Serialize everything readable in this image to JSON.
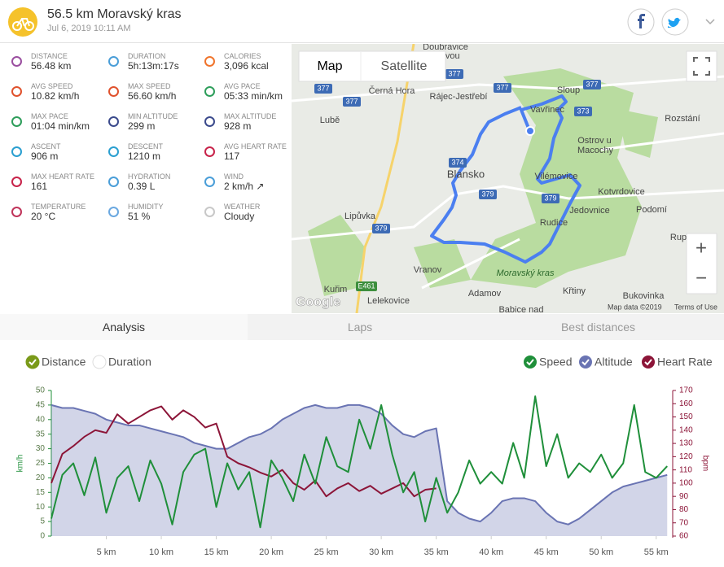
{
  "header": {
    "title": "56.5 km Moravský kras",
    "date": "Jul 6, 2019 10:11 AM"
  },
  "stats": [
    {
      "label": "DISTANCE",
      "value": "56.48 km"
    },
    {
      "label": "DURATION",
      "value": "5h:13m:17s"
    },
    {
      "label": "CALORIES",
      "value": "3,096 kcal"
    },
    {
      "label": "AVG SPEED",
      "value": "10.82 km/h"
    },
    {
      "label": "MAX SPEED",
      "value": "56.60 km/h"
    },
    {
      "label": "AVG PACE",
      "value": "05:33 min/km"
    },
    {
      "label": "MAX PACE",
      "value": "01:04 min/km"
    },
    {
      "label": "MIN ALTITUDE",
      "value": "299 m"
    },
    {
      "label": "MAX ALTITUDE",
      "value": "928 m"
    },
    {
      "label": "ASCENT",
      "value": "906 m"
    },
    {
      "label": "DESCENT",
      "value": "1210 m"
    },
    {
      "label": "AVG HEART RATE",
      "value": "117"
    },
    {
      "label": "MAX HEART RATE",
      "value": "161"
    },
    {
      "label": "HYDRATION",
      "value": "0.39 L"
    },
    {
      "label": "WIND",
      "value": "2 km/h ↗"
    },
    {
      "label": "TEMPERATURE",
      "value": "20 °C"
    },
    {
      "label": "HUMIDITY",
      "value": "51 %"
    },
    {
      "label": "WEATHER",
      "value": "Cloudy"
    }
  ],
  "map": {
    "buttons": [
      "Map",
      "Satellite"
    ],
    "places": [
      "Doubravice",
      "itavou",
      "Černá Hora",
      "Rájec-Jestřebí",
      "Sloup",
      "Lubě",
      "Vavřinec",
      "Rozstání",
      "Ostrov u",
      "Macochy",
      "Blansko",
      "Vilémovice",
      "Kotvrdovice",
      "Jedovnice",
      "Podomí",
      "Rudice",
      "Rup",
      "Lipůvka",
      "Vranov",
      "Moravský kras",
      "Křtiny",
      "Adamov",
      "Bukovinka",
      "Kuřim",
      "Lelekovice",
      "Babice nad"
    ],
    "roads": [
      "377",
      "377",
      "377",
      "377",
      "377",
      "373",
      "374",
      "379",
      "379",
      "379",
      "E461"
    ],
    "zoom": [
      "+",
      "−"
    ],
    "logo": "Google",
    "attribution": "Map data ©2019",
    "terms": "Terms of Use"
  },
  "tabs": [
    "Analysis",
    "Laps",
    "Best distances"
  ],
  "chart_data": {
    "type": "line",
    "x_modes": [
      "Distance",
      "Duration"
    ],
    "x": [
      0,
      1,
      2,
      3,
      4,
      5,
      6,
      7,
      8,
      9,
      10,
      11,
      12,
      13,
      14,
      15,
      16,
      17,
      18,
      19,
      20,
      21,
      22,
      23,
      24,
      25,
      26,
      27,
      28,
      29,
      30,
      31,
      32,
      33,
      34,
      35,
      36,
      37,
      38,
      39,
      40,
      41,
      42,
      43,
      44,
      45,
      46,
      47,
      48,
      49,
      50,
      51,
      52,
      53,
      54,
      55,
      56
    ],
    "xlim": [
      0,
      56.5
    ],
    "xticks": [
      {
        "value": 5,
        "label": "5 km"
      },
      {
        "value": 10,
        "label": "10 km"
      },
      {
        "value": 15,
        "label": "15 km"
      },
      {
        "value": 20,
        "label": "20 km"
      },
      {
        "value": 25,
        "label": "25 km"
      },
      {
        "value": 30,
        "label": "30 km"
      },
      {
        "value": 35,
        "label": "35 km"
      },
      {
        "value": 40,
        "label": "40 km"
      },
      {
        "value": 45,
        "label": "45 km"
      },
      {
        "value": 50,
        "label": "50 km"
      },
      {
        "value": 55,
        "label": "55 km"
      }
    ],
    "ylim": [
      0,
      50
    ],
    "yticks": [
      0,
      5,
      10,
      15,
      20,
      25,
      30,
      35,
      40,
      45,
      50
    ],
    "ylabel": "km/h",
    "y2lim": [
      60,
      170
    ],
    "y2ticks": [
      60,
      70,
      80,
      90,
      100,
      110,
      120,
      130,
      140,
      150,
      160,
      170
    ],
    "y2label": "bpm",
    "grid": false,
    "series": [
      {
        "name": "Speed",
        "color": "#1f8f3a",
        "axis": "y",
        "values": [
          6,
          21,
          25,
          14,
          27,
          8,
          20,
          24,
          12,
          26,
          18,
          4,
          22,
          28,
          30,
          10,
          25,
          16,
          22,
          3,
          26,
          20,
          12,
          28,
          18,
          34,
          24,
          22,
          40,
          30,
          45,
          28,
          15,
          22,
          5,
          20,
          8,
          15,
          26,
          18,
          22,
          18,
          32,
          20,
          48,
          24,
          35,
          20,
          25,
          22,
          28,
          20,
          25,
          45,
          22,
          20,
          24
        ]
      },
      {
        "name": "Altitude",
        "color": "#6a74b3",
        "axis": "y",
        "values": [
          45,
          44,
          44,
          43,
          42,
          40,
          39,
          38,
          38,
          37,
          36,
          35,
          34,
          32,
          31,
          30,
          30,
          32,
          34,
          35,
          37,
          40,
          42,
          44,
          45,
          44,
          44,
          45,
          45,
          44,
          42,
          38,
          35,
          34,
          36,
          37,
          12,
          8,
          6,
          5,
          8,
          12,
          13,
          13,
          12,
          8,
          5,
          4,
          6,
          9,
          12,
          15,
          17,
          18,
          19,
          20,
          21
        ]
      },
      {
        "name": "Heart Rate",
        "color": "#8c1538",
        "axis": "y2",
        "values": [
          100,
          122,
          128,
          135,
          140,
          138,
          152,
          145,
          150,
          155,
          158,
          148,
          155,
          150,
          142,
          145,
          120,
          115,
          112,
          108,
          105,
          110,
          100,
          95,
          102,
          90,
          96,
          100,
          94,
          98,
          92,
          96,
          100,
          90,
          95,
          96,
          null,
          null,
          null,
          null,
          null,
          null,
          null,
          null,
          null,
          null,
          null,
          null,
          null,
          null,
          null,
          null,
          null,
          null,
          null,
          null,
          null
        ]
      }
    ]
  }
}
